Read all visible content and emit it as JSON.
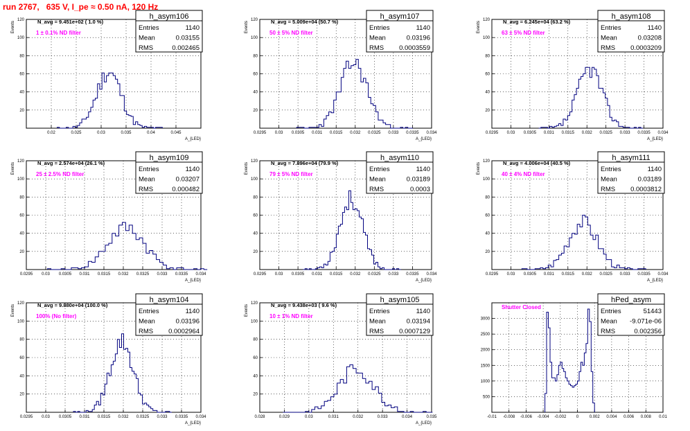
{
  "title": "run 2767,   635 V, I_pe ≈ 0.50 nA, 120 Hz",
  "colors": {
    "histogram": "#00007f",
    "annotation": "#ff00ff",
    "title": "#ff0000",
    "grid": "#000000"
  },
  "chart_data": [
    {
      "type": "bar",
      "name": "h_asym106",
      "ylabel": "Events",
      "xlabel": "A_{LED}",
      "xlim": [
        0.015,
        0.05
      ],
      "ylim": [
        0,
        120
      ],
      "xticks": [
        "0.02",
        "0.025",
        "0.03",
        "0.035",
        "0.04",
        "0.045"
      ],
      "xtick_values": [
        0.02,
        0.025,
        0.03,
        0.035,
        0.04,
        0.045
      ],
      "yticks": [
        "20",
        "40",
        "60",
        "80",
        "100",
        "120"
      ],
      "ytick_values": [
        20,
        40,
        60,
        80,
        100,
        120
      ],
      "nbar_text": "N_avg = 9.451e+02 ( 1.0 %)",
      "filter_text": "1 ± 0.1% ND filter",
      "stats": {
        "Entries": "1140",
        "Mean": "0.03155",
        "RMS": "0.002465"
      },
      "hist": {
        "mean": 0.03155,
        "rms": 0.002465,
        "peak": 62,
        "seed": 11
      }
    },
    {
      "type": "bar",
      "name": "h_asym107",
      "ylabel": "Events",
      "xlabel": "A_{LED}",
      "xlim": [
        0.0295,
        0.034
      ],
      "ylim": [
        0,
        120
      ],
      "xticks": [
        "0.0295",
        "0.03",
        "0.0305",
        "0.031",
        "0.0315",
        "0.032",
        "0.0325",
        "0.033",
        "0.0335",
        "0.034"
      ],
      "xtick_values": [
        0.0295,
        0.03,
        0.0305,
        0.031,
        0.0315,
        0.032,
        0.0325,
        0.033,
        0.0335,
        0.034
      ],
      "yticks": [
        "20",
        "40",
        "60",
        "80",
        "100",
        "120"
      ],
      "ytick_values": [
        20,
        40,
        60,
        80,
        100,
        120
      ],
      "nbar_text": "N_avg = 5.009e+04 (50.7 %)",
      "filter_text": "50 ± 5% ND filter",
      "stats": {
        "Entries": "1140",
        "Mean": "0.03196",
        "RMS": "0.0003559"
      },
      "hist": {
        "mean": 0.03196,
        "rms": 0.0003559,
        "peak": 72,
        "seed": 23
      }
    },
    {
      "type": "bar",
      "name": "h_asym108",
      "ylabel": "Events",
      "xlabel": "A_{LED}",
      "xlim": [
        0.0295,
        0.034
      ],
      "ylim": [
        0,
        120
      ],
      "xticks": [
        "0.0295",
        "0.03",
        "0.0305",
        "0.031",
        "0.0315",
        "0.032",
        "0.0325",
        "0.033",
        "0.0335",
        "0.034"
      ],
      "xtick_values": [
        0.0295,
        0.03,
        0.0305,
        0.031,
        0.0315,
        0.032,
        0.0325,
        0.033,
        0.0335,
        0.034
      ],
      "yticks": [
        "20",
        "40",
        "60",
        "80",
        "100",
        "120"
      ],
      "ytick_values": [
        20,
        40,
        60,
        80,
        100,
        120
      ],
      "nbar_text": "N_avg = 6.245e+04 (63.2 %)",
      "filter_text": "63 ± 5% ND filter",
      "stats": {
        "Entries": "1140",
        "Mean": "0.03208",
        "RMS": "0.0003209"
      },
      "hist": {
        "mean": 0.03208,
        "rms": 0.0003209,
        "peak": 66,
        "seed": 37
      }
    },
    {
      "type": "bar",
      "name": "h_asym109",
      "ylabel": "Events",
      "xlabel": "A_{LED}",
      "xlim": [
        0.0295,
        0.034
      ],
      "ylim": [
        0,
        120
      ],
      "xticks": [
        "0.0295",
        "0.03",
        "0.0305",
        "0.031",
        "0.0315",
        "0.032",
        "0.0325",
        "0.033",
        "0.0335",
        "0.034"
      ],
      "xtick_values": [
        0.0295,
        0.03,
        0.0305,
        0.031,
        0.0315,
        0.032,
        0.0325,
        0.033,
        0.0335,
        0.034
      ],
      "yticks": [
        "20",
        "40",
        "60",
        "80",
        "100",
        "120"
      ],
      "ytick_values": [
        20,
        40,
        60,
        80,
        100,
        120
      ],
      "nbar_text": "N_avg = 2.574e+04 (26.1 %)",
      "filter_text": "25 ± 2.5% ND filter",
      "stats": {
        "Entries": "1140",
        "Mean": "0.03207",
        "RMS": "0.000482"
      },
      "hist": {
        "mean": 0.03207,
        "rms": 0.000482,
        "peak": 46,
        "seed": 41
      }
    },
    {
      "type": "bar",
      "name": "h_asym110",
      "ylabel": "Events",
      "xlabel": "A_{LED}",
      "xlim": [
        0.0295,
        0.034
      ],
      "ylim": [
        0,
        120
      ],
      "xticks": [
        "0.0295",
        "0.03",
        "0.0305",
        "0.031",
        "0.0315",
        "0.032",
        "0.0325",
        "0.033",
        "0.0335",
        "0.034"
      ],
      "xtick_values": [
        0.0295,
        0.03,
        0.0305,
        0.031,
        0.0315,
        0.032,
        0.0325,
        0.033,
        0.0335,
        0.034
      ],
      "yticks": [
        "20",
        "40",
        "60",
        "80",
        "100",
        "120"
      ],
      "ytick_values": [
        20,
        40,
        60,
        80,
        100,
        120
      ],
      "nbar_text": "N_avg = 7.896e+04 (79.9 %)",
      "filter_text": "79 ± 5% ND filter",
      "stats": {
        "Entries": "1140",
        "Mean": "0.03189",
        "RMS": "0.0003"
      },
      "hist": {
        "mean": 0.03189,
        "rms": 0.0003,
        "peak": 78,
        "seed": 53
      }
    },
    {
      "type": "bar",
      "name": "h_asym111",
      "ylabel": "Events",
      "xlabel": "A_{LED}",
      "xlim": [
        0.0295,
        0.034
      ],
      "ylim": [
        0,
        120
      ],
      "xticks": [
        "0.0295",
        "0.03",
        "0.0305",
        "0.031",
        "0.0315",
        "0.032",
        "0.0325",
        "0.033",
        "0.0335",
        "0.034"
      ],
      "xtick_values": [
        0.0295,
        0.03,
        0.0305,
        0.031,
        0.0315,
        0.032,
        0.0325,
        0.033,
        0.0335,
        0.034
      ],
      "yticks": [
        "20",
        "40",
        "60",
        "80",
        "100",
        "120"
      ],
      "ytick_values": [
        20,
        40,
        60,
        80,
        100,
        120
      ],
      "nbar_text": "N_avg = 4.006e+04 (40.5 %)",
      "filter_text": "40 ± 4% ND filter",
      "stats": {
        "Entries": "1140",
        "Mean": "0.03189",
        "RMS": "0.0003812"
      },
      "hist": {
        "mean": 0.03189,
        "rms": 0.0003812,
        "peak": 53,
        "seed": 67
      }
    },
    {
      "type": "bar",
      "name": "h_asym104",
      "ylabel": "Events",
      "xlabel": "A_{LED}",
      "xlim": [
        0.0295,
        0.034
      ],
      "ylim": [
        0,
        120
      ],
      "xticks": [
        "0.0295",
        "0.03",
        "0.0305",
        "0.031",
        "0.0315",
        "0.032",
        "0.0325",
        "0.033",
        "0.0335",
        "0.034"
      ],
      "xtick_values": [
        0.0295,
        0.03,
        0.0305,
        0.031,
        0.0315,
        0.032,
        0.0325,
        0.033,
        0.0335,
        0.034
      ],
      "yticks": [
        "20",
        "40",
        "60",
        "80",
        "100",
        "120"
      ],
      "ytick_values": [
        20,
        40,
        60,
        80,
        100,
        120
      ],
      "nbar_text": "N_avg = 9.880e+04 (100.0 %)",
      "filter_text": "100% (No filter)",
      "stats": {
        "Entries": "1140",
        "Mean": "0.03196",
        "RMS": "0.0002964"
      },
      "hist": {
        "mean": 0.03196,
        "rms": 0.0002964,
        "peak": 78,
        "seed": 79
      }
    },
    {
      "type": "bar",
      "name": "h_asym105",
      "ylabel": "Events",
      "xlabel": "A_{LED}",
      "xlim": [
        0.028,
        0.035
      ],
      "ylim": [
        0,
        120
      ],
      "xticks": [
        "0.028",
        "0.029",
        "0.03",
        "0.031",
        "0.032",
        "0.033",
        "0.034",
        "0.035"
      ],
      "xtick_values": [
        0.028,
        0.029,
        0.03,
        0.031,
        0.032,
        0.033,
        0.034,
        0.035
      ],
      "yticks": [
        "20",
        "40",
        "60",
        "80",
        "100",
        "120"
      ],
      "ytick_values": [
        20,
        40,
        60,
        80,
        100,
        120
      ],
      "nbar_text": "N_avg = 9.438e+03 ( 9.6 %)",
      "filter_text": "10 ± 1% ND filter",
      "stats": {
        "Entries": "1140",
        "Mean": "0.03194",
        "RMS": "0.0007129"
      },
      "hist": {
        "mean": 0.03194,
        "rms": 0.0007129,
        "peak": 48,
        "seed": 83
      }
    },
    {
      "type": "bar",
      "name": "hPed_asym",
      "ylabel": "",
      "xlabel": "",
      "xlim": [
        -0.01,
        0.01
      ],
      "ylim": [
        0,
        3500
      ],
      "xticks": [
        "-0.01",
        "-0.008",
        "-0.006",
        "-0.004",
        "-0.002",
        "0",
        "0.002",
        "0.004",
        "0.006",
        "0.008",
        "0.01"
      ],
      "xtick_values": [
        -0.01,
        -0.008,
        -0.006,
        -0.004,
        -0.002,
        0,
        0.002,
        0.004,
        0.006,
        0.008,
        0.01
      ],
      "yticks": [
        "500",
        "1000",
        "1500",
        "2000",
        "2500",
        "3000"
      ],
      "ytick_values": [
        500,
        1000,
        1500,
        2000,
        2500,
        3000
      ],
      "nbar_text": "",
      "filter_text": "Shutter Closed",
      "stats": {
        "Entries": "51443",
        "Mean": "-9.071e-06",
        "RMS": "0.002356"
      },
      "ped_bins": {
        "x0": -0.0038,
        "width": 0.0002,
        "values": [
          600,
          3200,
          2700,
          1600,
          1100,
          1100,
          1000,
          1200,
          1500,
          1600,
          1400,
          1300,
          1100,
          1000,
          900,
          850,
          800,
          850,
          900,
          1000,
          1300,
          1600,
          1500,
          1900,
          2200,
          3300,
          2900,
          1300,
          300
        ]
      }
    }
  ]
}
